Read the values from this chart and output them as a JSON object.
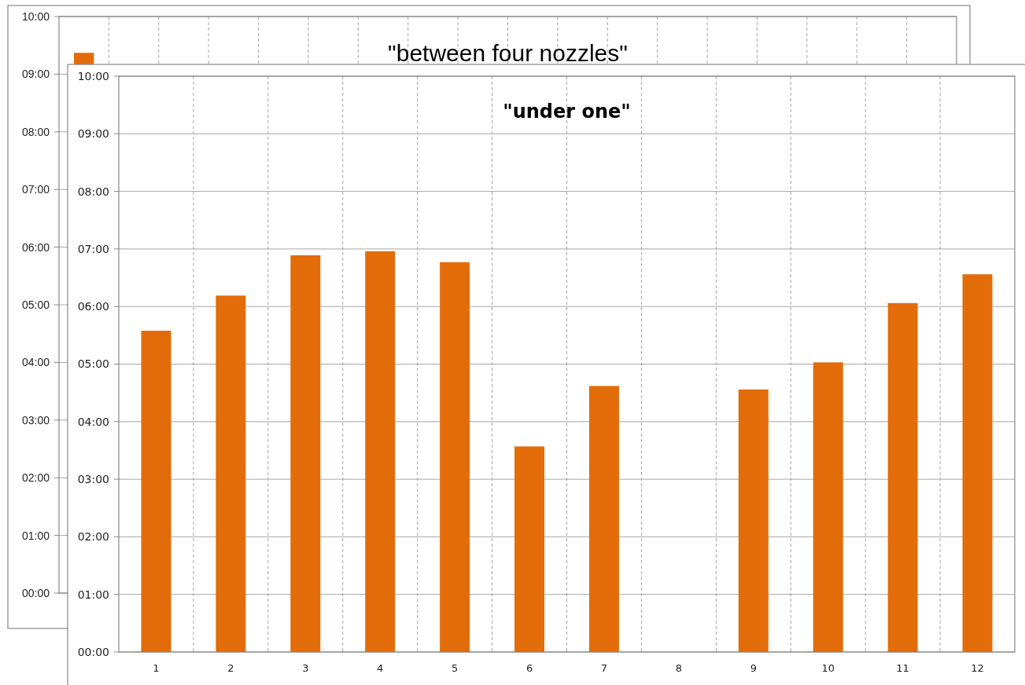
{
  "chart_data": [
    {
      "type": "bar",
      "title": "\"between four nozzles\"",
      "categories": [
        null,
        null,
        null,
        null,
        null,
        null,
        null,
        null,
        null,
        null,
        null,
        null,
        null,
        null,
        null,
        null,
        null,
        null
      ],
      "values": [
        9.37,
        null,
        null,
        null,
        null,
        null,
        null,
        null,
        null,
        null,
        null,
        null,
        null,
        null,
        null,
        null,
        null,
        null
      ],
      "color": "#e36c0a",
      "ylim": [
        0,
        10
      ],
      "yticks": [
        {
          "value": 0,
          "label": "00:00"
        },
        {
          "value": 1,
          "label": "01:00"
        },
        {
          "value": 2,
          "label": "02:00"
        },
        {
          "value": 3,
          "label": "03:00"
        },
        {
          "value": 4,
          "label": "04:00"
        },
        {
          "value": 5,
          "label": "05:00"
        },
        {
          "value": 6,
          "label": "06:00"
        },
        {
          "value": 7,
          "label": "07:00"
        },
        {
          "value": 8,
          "label": "08:00"
        },
        {
          "value": 9,
          "label": "09:00"
        },
        {
          "value": 10,
          "label": "10:00"
        }
      ],
      "grid": true,
      "tick_labels": "y"
    },
    {
      "type": "bar",
      "title": "\"under one\"",
      "categories": [
        "1",
        "2",
        "3",
        "4",
        "5",
        "6",
        "7",
        "8",
        "9",
        "10",
        "11",
        "12"
      ],
      "values": [
        5.58,
        6.19,
        6.89,
        6.96,
        6.77,
        3.57,
        4.62,
        0,
        4.56,
        5.03,
        6.06,
        6.56
      ],
      "color": "#e36c0a",
      "ylim": [
        0,
        10
      ],
      "yticks": [
        {
          "value": 0,
          "label": "00:00"
        },
        {
          "value": 1,
          "label": "01:00"
        },
        {
          "value": 2,
          "label": "02:00"
        },
        {
          "value": 3,
          "label": "03:00"
        },
        {
          "value": 4,
          "label": "04:00"
        },
        {
          "value": 5,
          "label": "05:00"
        },
        {
          "value": 6,
          "label": "06:00"
        },
        {
          "value": 7,
          "label": "07:00"
        },
        {
          "value": 8,
          "label": "08:00"
        },
        {
          "value": 9,
          "label": "09:00"
        },
        {
          "value": 10,
          "label": "10:00"
        }
      ],
      "grid": true
    }
  ]
}
